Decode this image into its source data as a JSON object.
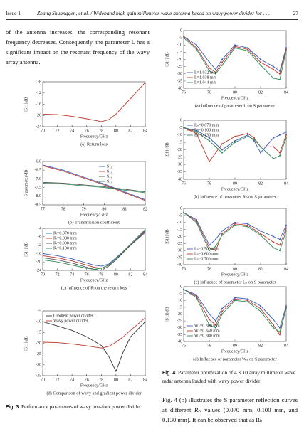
{
  "header": {
    "issue": "Issue 1",
    "running_title": "Zhang Shuanggen, et al. / Wideband high gain millimeter wave antenna based on wavy power divider for . . .",
    "page": "27"
  },
  "left_text": "of the antenna increases, the corresponding resonant frequency decreases. Consequently, the parameter L has a significant impact on the resonant frequency of the wavy array antenna.",
  "figure3": {
    "label": "Fig. 3",
    "caption": "Performance parameters of wavy one-four power divider",
    "panels": [
      {
        "type": "line",
        "y_label": "|S11|/dB",
        "x_label": "Frequency/GHz",
        "caption": "(a) Return loss",
        "x": [
          70,
          72,
          74,
          76,
          78,
          79,
          80,
          82,
          84
        ],
        "xlim": [
          70,
          84
        ],
        "xticks": [
          70,
          72,
          74,
          76,
          78,
          80,
          82,
          84
        ],
        "ylim": [
          -24,
          -8
        ],
        "yticks": [
          -8,
          -12,
          -16,
          -20,
          -24
        ],
        "series": [
          {
            "color": "#c0392b",
            "values": [
              -19.5,
              -19.7,
              -20.3,
              -21.2,
              -22.2,
              -21.5,
              -19.5,
              -14,
              -8.2
            ]
          }
        ]
      },
      {
        "type": "line",
        "y_label": "S parameter/dB",
        "x_label": "Frequency/GHz",
        "caption": "(b) Transmission coefficient",
        "legend": "upper right",
        "x": [
          77,
          78,
          79,
          80,
          81,
          82
        ],
        "xlim": [
          77,
          82
        ],
        "xticks": [
          77,
          78,
          79,
          80,
          81,
          82
        ],
        "ylim": [
          -8.5,
          -6
        ],
        "yticks": [
          {
            "value": -6,
            "label": "-6.0"
          },
          -6.5,
          {
            "value": -7,
            "label": "-7.0"
          },
          -7.5,
          {
            "value": -8,
            "label": "-8.0"
          },
          -8.5
        ],
        "series": [
          {
            "name": "S₂₁",
            "color": "#3b5bbd",
            "values": [
              -6.2,
              -6.5,
              -6.9,
              -7.3,
              -7.75,
              -8.2
            ]
          },
          {
            "name": "S₃₁",
            "color": "#c0392b",
            "values": [
              -6.25,
              -6.55,
              -6.95,
              -7.35,
              -7.8,
              -8.25
            ]
          },
          {
            "name": "S₄₁",
            "color": "#555555",
            "values": [
              -7.2,
              -7.25,
              -7.35,
              -7.45,
              -7.6,
              -7.75
            ]
          },
          {
            "name": "S₅₁",
            "color": "#2e8b57",
            "values": [
              -7.25,
              -7.3,
              -7.4,
              -7.5,
              -7.65,
              -7.8
            ]
          }
        ]
      },
      {
        "type": "line",
        "y_label": "|S11|/dB",
        "x_label": "Frequency/GHz",
        "caption": "(c) Influence of Rₗ on the return loss",
        "legend": "upper left",
        "x": [
          70,
          72,
          74,
          76,
          77,
          78,
          79,
          80,
          82,
          84
        ],
        "xlim": [
          70,
          84
        ],
        "xticks": [
          70,
          72,
          74,
          76,
          78,
          80,
          82,
          84
        ],
        "ylim": [
          -24,
          -4
        ],
        "yticks": [
          -4,
          -8,
          -12,
          -16,
          -20,
          -24
        ],
        "series": [
          {
            "name": "Rₗ=0.070 mm",
            "color": "#3b5bbd",
            "values": [
              -16,
              -17,
              -18.5,
              -20.5,
              -21.5,
              -22,
              -21,
              -18,
              -12,
              -6
            ]
          },
          {
            "name": "Rₗ=0.080 mm",
            "color": "#c0392b",
            "values": [
              -17,
              -18,
              -19.5,
              -21.5,
              -22.5,
              -23,
              -21.5,
              -18.5,
              -12,
              -5.5
            ]
          },
          {
            "name": "Rₗ=0.090 mm",
            "color": "#555555",
            "values": [
              -18,
              -19,
              -20.5,
              -22.5,
              -23.5,
              -24,
              -22,
              -19,
              -12,
              -5
            ]
          },
          {
            "name": "Rₗ=0.100 mm",
            "color": "#2e8b57",
            "values": [
              -19,
              -20,
              -21.5,
              -23,
              -23.5,
              -23,
              -21.5,
              -18.5,
              -11.5,
              -4.5
            ]
          }
        ]
      },
      {
        "type": "line",
        "y_label": "|S11|/dB",
        "x_label": "Frequency/GHz",
        "caption": "(d) Comparison of wavy and gradient power divider",
        "legend": "upper left",
        "x": [
          70,
          72,
          74,
          76,
          78,
          79,
          80,
          81,
          82,
          84
        ],
        "xlim": [
          70,
          84
        ],
        "xticks": [
          70,
          72,
          74,
          76,
          78,
          80,
          82,
          84
        ],
        "ylim": [
          -35,
          -5
        ],
        "yticks": [
          -5,
          -10,
          -15,
          -20,
          -25,
          -30,
          -35
        ],
        "series": [
          {
            "name": "Gradient power divider",
            "color": "#333333",
            "values": [
              -10,
              -12,
              -14,
              -17,
              -21,
              -26,
              -33,
              -24,
              -17,
              -10
            ]
          },
          {
            "name": "Wavy power divider",
            "color": "#c0392b",
            "values": [
              -19.5,
              -19.7,
              -20.3,
              -21.2,
              -22.2,
              -21.5,
              -19.5,
              -17,
              -14,
              -8.2
            ]
          }
        ]
      }
    ]
  },
  "figure4": {
    "label": "Fig. 4",
    "caption": "Parameter optimization of 4 × 10 array millimeter wave radar antenna loaded with wavy power divider",
    "panels": [
      {
        "type": "line",
        "y_label": "|S11|/dB",
        "x_label": "Frequency/GHz",
        "caption": "(a) Influence of parameter L on S parameter",
        "legend": "lower left",
        "x": [
          76,
          77,
          78,
          78.5,
          79,
          80,
          81,
          82,
          83,
          83.5,
          84
        ],
        "xlim": [
          76,
          84
        ],
        "xticks": [
          76,
          78,
          80,
          82,
          84
        ],
        "ylim": [
          -40,
          0
        ],
        "yticks": [
          0,
          -5,
          -10,
          -15,
          -20,
          -25,
          -30,
          -35,
          -40
        ],
        "series": [
          {
            "name": "L=1.032 mm",
            "color": "#3b5bbd",
            "values": [
              -4,
              -10,
              -22,
              -27,
              -20,
              -10,
              -12,
              -20,
              -25,
              -28,
              -12
            ]
          },
          {
            "name": "L=1.038 mm",
            "color": "#c0392b",
            "values": [
              -4,
              -12,
              -26,
              -29,
              -22,
              -11,
              -13,
              -22,
              -27,
              -30,
              -13
            ]
          },
          {
            "name": "L=1.044 mm",
            "color": "#2e8b57",
            "values": [
              -5,
              -13,
              -28,
              -30,
              -24,
              -12,
              -14,
              -24,
              -33,
              -34,
              -14
            ]
          }
        ]
      },
      {
        "type": "line",
        "y_label": "|S11|/dB",
        "x_label": "Frequency/GHz",
        "caption": "(b) Influence of parameter Rₕ on S parameter",
        "legend": "upper left",
        "x": [
          76,
          77,
          78,
          79,
          80,
          81,
          81.5,
          82,
          83,
          83.5,
          84
        ],
        "xlim": [
          76,
          84
        ],
        "xticks": [
          76,
          78,
          80,
          82,
          84
        ],
        "ylim": [
          -40,
          0
        ],
        "yticks": [
          0,
          -5,
          -10,
          -15,
          -20,
          -25,
          -30,
          -35,
          -40
        ],
        "series": [
          {
            "name": "Rₕ=0.070 mm",
            "color": "#3b5bbd",
            "values": [
              -5,
              -7,
              -12,
              -20,
              -14,
              -10,
              -14,
              -22,
              -12,
              -10,
              -8
            ]
          },
          {
            "name": "Rₕ=0.100 mm",
            "color": "#c0392b",
            "values": [
              -5,
              -9,
              -28,
              -16,
              -11,
              -9,
              -12,
              -18,
              -18,
              -22,
              -10
            ]
          },
          {
            "name": "Rₕ=0.130 mm",
            "color": "#2e8b57",
            "values": [
              -5,
              -8,
              -14,
              -22,
              -15,
              -11,
              -13,
              -18,
              -26,
              -24,
              -12
            ]
          }
        ]
      },
      {
        "type": "line",
        "y_label": "|S11|/dB",
        "x_label": "Frequency/GHz",
        "caption": "(c) Influence of parameter Lₛ on S parameter",
        "legend": "lower left",
        "x": [
          76,
          77,
          78,
          78.5,
          79,
          80,
          81,
          82,
          83,
          83.5,
          84
        ],
        "xlim": [
          76,
          84
        ],
        "xticks": [
          76,
          78,
          80,
          82,
          84
        ],
        "ylim": [
          -40,
          0
        ],
        "yticks": [
          0,
          -5,
          -10,
          -15,
          -20,
          -25,
          -30,
          -35,
          -40
        ],
        "series": [
          {
            "name": "Lₛ=0.500 mm",
            "color": "#3b5bbd",
            "values": [
              -3,
              -8,
              -26,
              -22,
              -16,
              -10,
              -11,
              -16,
              -20,
              -22,
              -12
            ]
          },
          {
            "name": "Lₛ=0.600 mm",
            "color": "#c0392b",
            "values": [
              -3,
              -9,
              -28,
              -30,
              -18,
              -11,
              -12,
              -18,
              -24,
              -26,
              -14
            ]
          },
          {
            "name": "Lₛ=0.700 mm",
            "color": "#2e8b57",
            "values": [
              -3,
              -10,
              -30,
              -27,
              -19,
              -12,
              -13,
              -19,
              -28,
              -30,
              -16
            ]
          }
        ]
      },
      {
        "type": "line",
        "y_label": "|S11|/dB",
        "x_label": "Frequency/GHz",
        "caption": "(d) Influence of parameter Wₛ on S parameter",
        "legend": "lower left",
        "x": [
          76,
          77,
          78,
          78.5,
          79,
          80,
          81,
          82,
          83,
          83.5,
          84
        ],
        "xlim": [
          76,
          84
        ],
        "xticks": [
          76,
          78,
          80,
          82,
          84
        ],
        "ylim": [
          -40,
          0
        ],
        "yticks": [
          0,
          -5,
          -10,
          -15,
          -20,
          -25,
          -30,
          -35,
          -40
        ],
        "series": [
          {
            "name": "Wₛ=0.300 mm",
            "color": "#3b5bbd",
            "values": [
              -2,
              -6,
              -20,
              -25,
              -16,
              -8,
              -9,
              -14,
              -24,
              -30,
              -14
            ]
          },
          {
            "name": "Wₛ=0.340 mm",
            "color": "#c0392b",
            "values": [
              -2,
              -7,
              -24,
              -28,
              -18,
              -9,
              -10,
              -16,
              -28,
              -35,
              -15
            ]
          },
          {
            "name": "Wₛ=0.380 mm",
            "color": "#2e8b57",
            "values": [
              -2,
              -8,
              -28,
              -30,
              -20,
              -10,
              -11,
              -18,
              -30,
              -33,
              -16
            ]
          }
        ]
      }
    ]
  },
  "right_text": "Fig. 4 (b) illustrates the S parameter reflection curves at different Rₕ values (0.070 mm, 0.100 mm, and 0.130 mm). It can be observed that as Rₕ"
}
